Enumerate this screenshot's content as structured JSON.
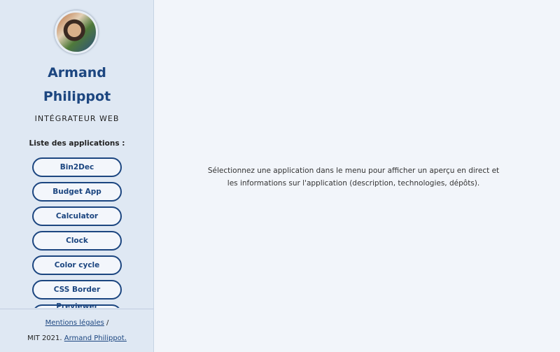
{
  "profile": {
    "name_line1": "Armand",
    "name_line2": "Philippot",
    "role": "INTÉGRATEUR WEB"
  },
  "apps_title": "Liste des applications :",
  "apps": [
    "Bin2Dec",
    "Budget App",
    "Calculator",
    "Clock",
    "Color cycle",
    "CSS Border Previewer",
    ""
  ],
  "footer": {
    "legal": "Mentions légales",
    "separator": "/",
    "license": "MIT 2021.",
    "author": "Armand Philippot."
  },
  "main": {
    "message": "Sélectionnez une application dans le menu pour afficher un aperçu en direct et les informations sur l'application (description, technologies, dépôts)."
  },
  "colors": {
    "accent": "#1c4680",
    "sidebar_bg": "#dfe8f3",
    "main_bg": "#f2f5fa"
  }
}
